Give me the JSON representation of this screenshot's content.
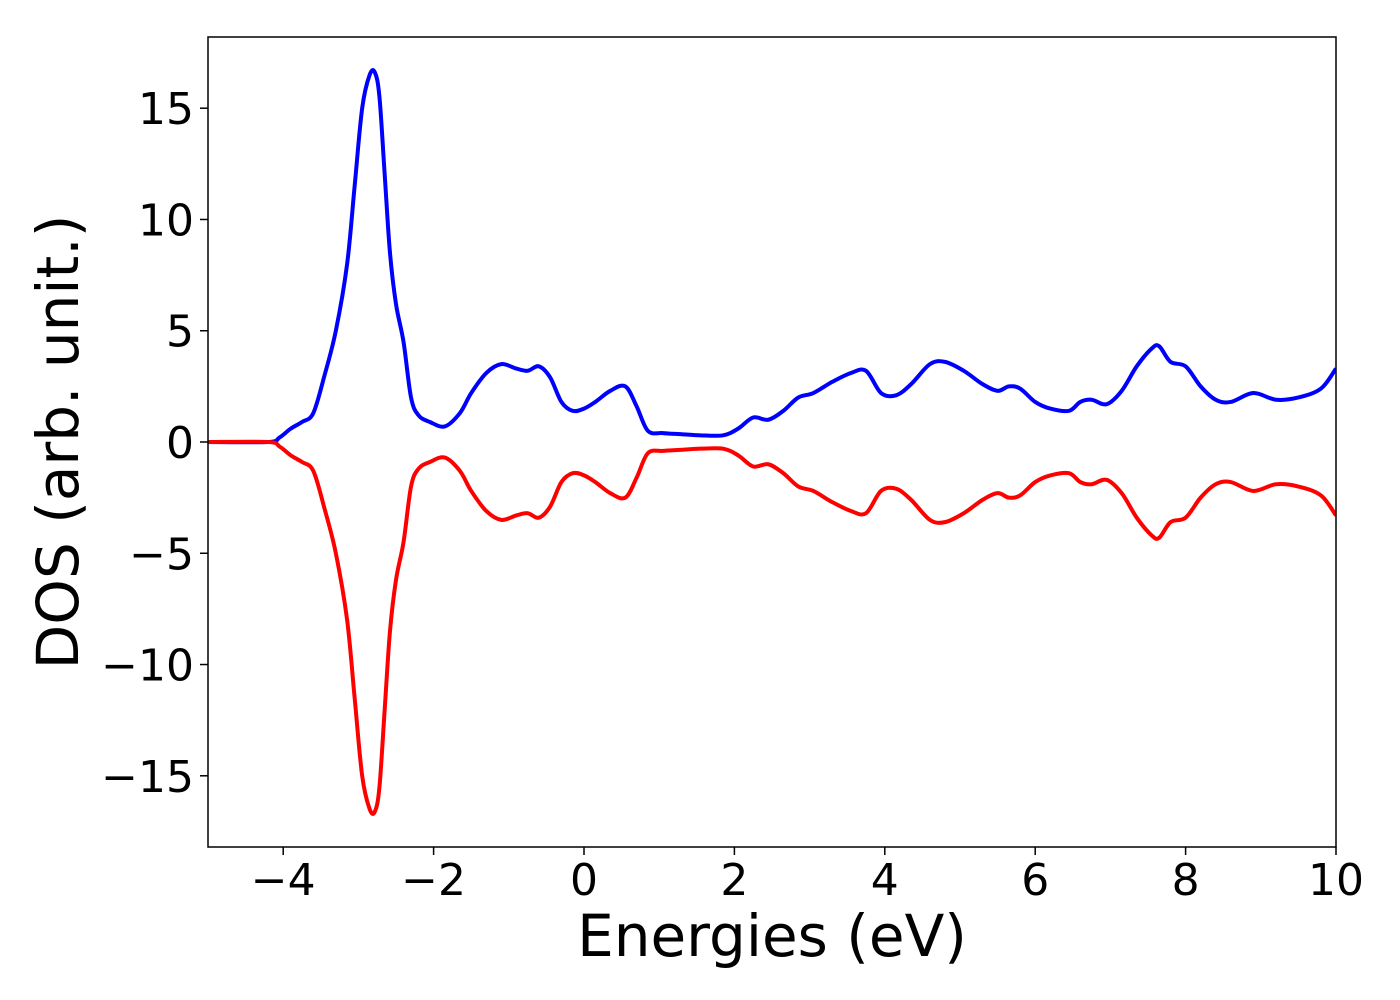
{
  "chart_data": {
    "type": "line",
    "title": "",
    "xlabel": "Energies (eV)",
    "ylabel": "DOS (arb. unit.)",
    "xlim": [
      -5,
      10
    ],
    "ylim": [
      -18.2,
      18.2
    ],
    "grid": false,
    "legend": "none",
    "xticks": [
      -4,
      -2,
      0,
      2,
      4,
      6,
      8,
      10
    ],
    "xtick_labels": [
      "−4",
      "−2",
      "0",
      "2",
      "4",
      "6",
      "8",
      "10"
    ],
    "yticks": [
      15,
      10,
      5,
      0,
      -5,
      -10,
      -15
    ],
    "ytick_labels": [
      "15",
      "10",
      "5",
      "0",
      "−5",
      "−10",
      "−15"
    ],
    "series": [
      {
        "color": "#0000ff",
        "x": [
          -5.0,
          -4.2,
          -4.05,
          -3.9,
          -3.75,
          -3.6,
          -3.45,
          -3.3,
          -3.15,
          -3.05,
          -2.95,
          -2.85,
          -2.78,
          -2.72,
          -2.65,
          -2.58,
          -2.5,
          -2.4,
          -2.3,
          -2.2,
          -2.05,
          -1.85,
          -1.65,
          -1.5,
          -1.3,
          -1.1,
          -0.9,
          -0.75,
          -0.6,
          -0.45,
          -0.3,
          -0.15,
          0.0,
          0.15,
          0.35,
          0.55,
          0.7,
          0.85,
          1.05,
          1.3,
          1.55,
          1.85,
          2.05,
          2.25,
          2.45,
          2.65,
          2.85,
          3.05,
          3.3,
          3.55,
          3.75,
          3.95,
          4.15,
          4.35,
          4.6,
          4.8,
          5.05,
          5.3,
          5.5,
          5.65,
          5.8,
          6.0,
          6.2,
          6.45,
          6.6,
          6.75,
          6.95,
          7.15,
          7.35,
          7.55,
          7.65,
          7.8,
          8.0,
          8.2,
          8.4,
          8.6,
          8.9,
          9.2,
          9.5,
          9.8,
          10.0
        ],
        "y": [
          0.0,
          0.0,
          0.2,
          0.6,
          0.9,
          1.3,
          3.0,
          5.0,
          8.0,
          11.5,
          15.0,
          16.5,
          16.6,
          15.5,
          12.0,
          8.5,
          6.2,
          4.5,
          2.0,
          1.2,
          0.9,
          0.7,
          1.3,
          2.2,
          3.1,
          3.5,
          3.3,
          3.2,
          3.4,
          2.9,
          1.8,
          1.4,
          1.5,
          1.8,
          2.3,
          2.5,
          1.6,
          0.5,
          0.4,
          0.35,
          0.3,
          0.3,
          0.6,
          1.1,
          1.0,
          1.4,
          2.0,
          2.2,
          2.7,
          3.1,
          3.2,
          2.2,
          2.1,
          2.6,
          3.5,
          3.6,
          3.2,
          2.6,
          2.3,
          2.5,
          2.4,
          1.8,
          1.5,
          1.4,
          1.8,
          1.9,
          1.7,
          2.3,
          3.4,
          4.2,
          4.3,
          3.6,
          3.4,
          2.5,
          1.9,
          1.8,
          2.2,
          1.9,
          2.0,
          2.4,
          3.3
        ]
      },
      {
        "color": "#ff0000",
        "x": [
          -5.0,
          -4.2,
          -4.05,
          -3.9,
          -3.75,
          -3.6,
          -3.45,
          -3.3,
          -3.15,
          -3.05,
          -2.95,
          -2.85,
          -2.78,
          -2.72,
          -2.65,
          -2.58,
          -2.5,
          -2.4,
          -2.3,
          -2.2,
          -2.05,
          -1.85,
          -1.65,
          -1.5,
          -1.3,
          -1.1,
          -0.9,
          -0.75,
          -0.6,
          -0.45,
          -0.3,
          -0.15,
          0.0,
          0.15,
          0.35,
          0.55,
          0.7,
          0.85,
          1.05,
          1.3,
          1.55,
          1.85,
          2.05,
          2.25,
          2.45,
          2.65,
          2.85,
          3.05,
          3.3,
          3.55,
          3.75,
          3.95,
          4.15,
          4.35,
          4.6,
          4.8,
          5.05,
          5.3,
          5.5,
          5.65,
          5.8,
          6.0,
          6.2,
          6.45,
          6.6,
          6.75,
          6.95,
          7.15,
          7.35,
          7.55,
          7.65,
          7.8,
          8.0,
          8.2,
          8.4,
          8.6,
          8.9,
          9.2,
          9.5,
          9.8,
          10.0
        ],
        "y": [
          0.0,
          0.0,
          -0.2,
          -0.6,
          -0.9,
          -1.3,
          -3.0,
          -5.0,
          -8.0,
          -11.5,
          -15.0,
          -16.5,
          -16.6,
          -15.5,
          -12.0,
          -8.5,
          -6.2,
          -4.5,
          -2.0,
          -1.2,
          -0.9,
          -0.7,
          -1.3,
          -2.2,
          -3.1,
          -3.5,
          -3.3,
          -3.2,
          -3.4,
          -2.9,
          -1.8,
          -1.4,
          -1.5,
          -1.8,
          -2.3,
          -2.5,
          -1.6,
          -0.5,
          -0.4,
          -0.35,
          -0.3,
          -0.3,
          -0.6,
          -1.1,
          -1.0,
          -1.4,
          -2.0,
          -2.2,
          -2.7,
          -3.1,
          -3.2,
          -2.2,
          -2.1,
          -2.6,
          -3.5,
          -3.6,
          -3.2,
          -2.6,
          -2.3,
          -2.5,
          -2.4,
          -1.8,
          -1.5,
          -1.4,
          -1.8,
          -1.9,
          -1.7,
          -2.3,
          -3.4,
          -4.2,
          -4.3,
          -3.6,
          -3.4,
          -2.5,
          -1.9,
          -1.8,
          -2.2,
          -1.9,
          -2.0,
          -2.4,
          -3.3
        ]
      }
    ]
  }
}
